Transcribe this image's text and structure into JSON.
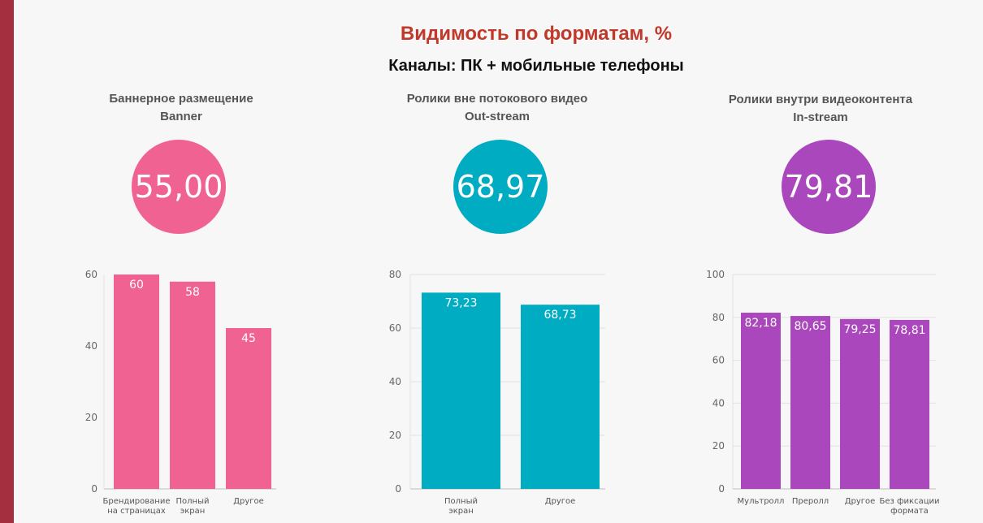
{
  "header": {
    "title": "Видимость по форматам, %",
    "subtitle": "Каналы: ПК + мобильные телефоны"
  },
  "panels": [
    {
      "title_line1": "Баннерное размещение",
      "title_line2": "Banner",
      "overall": "55,00",
      "color": "#f06292"
    },
    {
      "title_line1": "Ролики вне потокового видео",
      "title_line2": "Out-stream",
      "overall": "68,97",
      "color": "#00acc1"
    },
    {
      "title_line1": "Ролики внутри видеоконтента",
      "title_line2": "In-stream",
      "overall": "79,81",
      "color": "#ab47bc"
    }
  ],
  "chart_data": [
    {
      "type": "bar",
      "categories": [
        "Брендирование\nна страницах",
        "Полный\nэкран",
        "Другое"
      ],
      "values": [
        60,
        58,
        45
      ],
      "value_labels": [
        "60",
        "58",
        "45"
      ],
      "ylim": [
        0,
        60
      ],
      "yticks": [
        0,
        20,
        40,
        60
      ],
      "grid": false,
      "color": "#f06292"
    },
    {
      "type": "bar",
      "categories": [
        "Полный\nэкран",
        "Другое"
      ],
      "values": [
        73.23,
        68.73
      ],
      "value_labels": [
        "73,23",
        "68,73"
      ],
      "ylim": [
        0,
        80
      ],
      "yticks": [
        0,
        20,
        40,
        60,
        80
      ],
      "grid": true,
      "color": "#00acc1"
    },
    {
      "type": "bar",
      "categories": [
        "Мультролл",
        "Преролл",
        "Другое",
        "Без фиксации\nформата"
      ],
      "values": [
        82.18,
        80.65,
        79.25,
        78.81
      ],
      "value_labels": [
        "82,18",
        "80,65",
        "79,25",
        "78,81"
      ],
      "ylim": [
        0,
        100
      ],
      "yticks": [
        0,
        20,
        40,
        60,
        80,
        100
      ],
      "grid": true,
      "color": "#ab47bc"
    }
  ]
}
